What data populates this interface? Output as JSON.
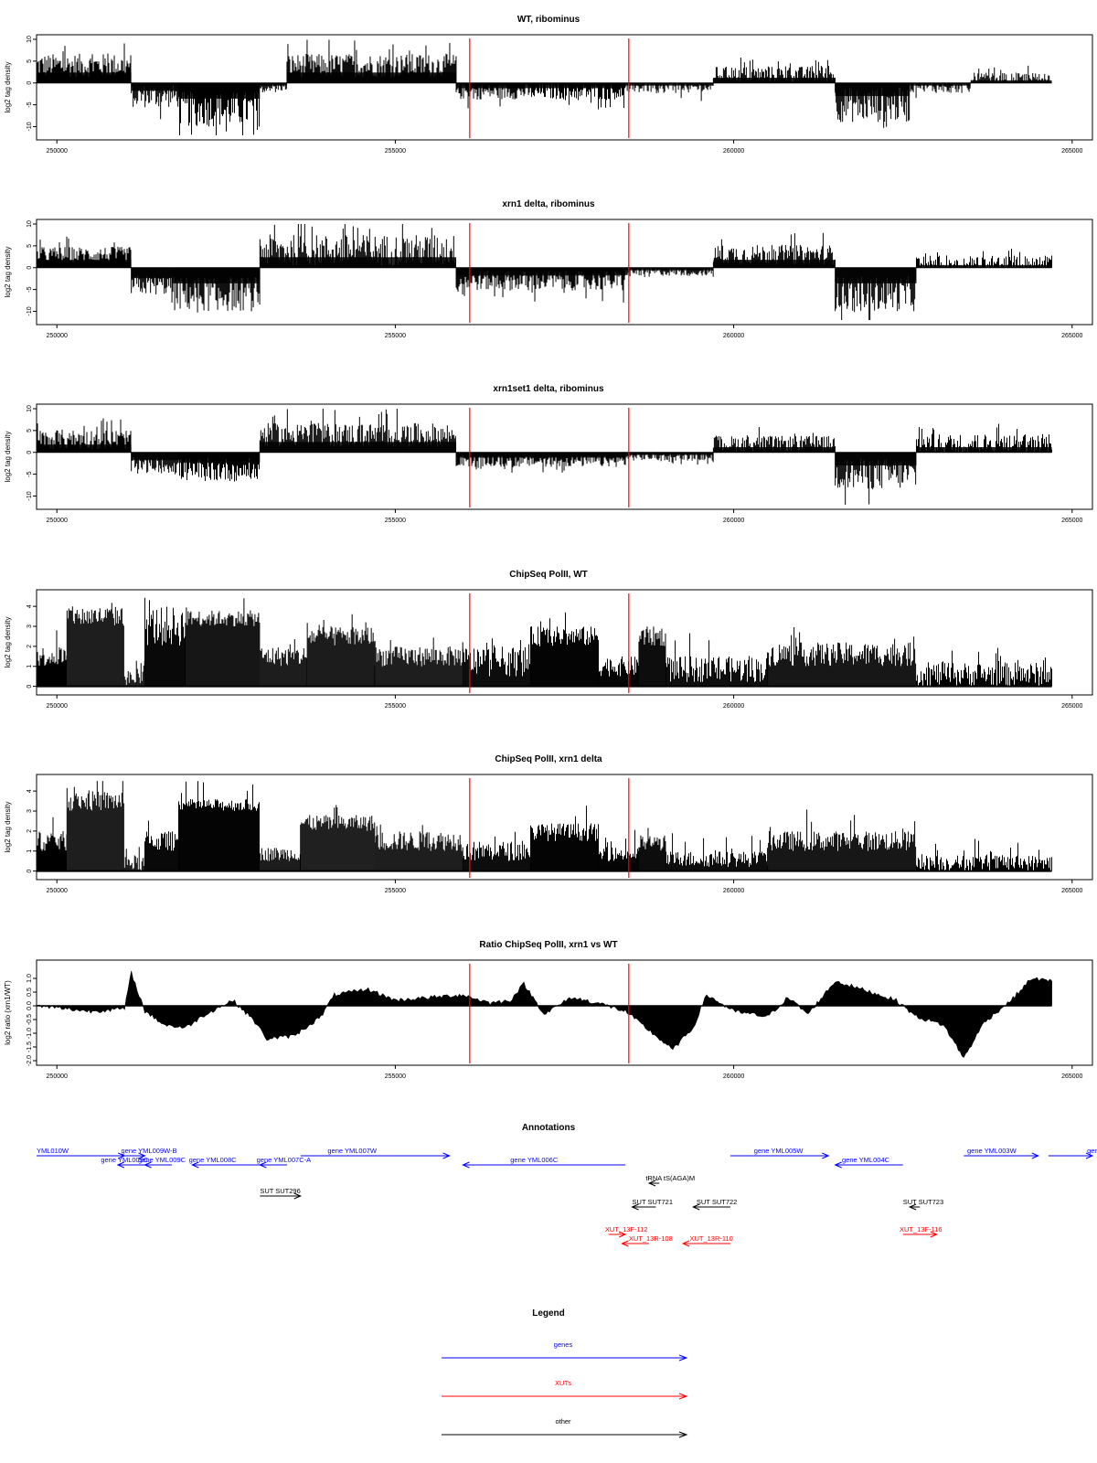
{
  "panels": [
    {
      "title": "WT, ribominus",
      "ylabel": "log2 tag density",
      "kind": "signed",
      "yticks": [
        "10",
        "5",
        "0",
        "-5",
        "-10"
      ],
      "ylim": [
        -12,
        10
      ]
    },
    {
      "title": "xrn1 delta, ribominus",
      "ylabel": "log2 tag density",
      "kind": "signed",
      "yticks": [
        "10",
        "5",
        "0",
        "-5",
        "-10"
      ],
      "ylim": [
        -12,
        10
      ]
    },
    {
      "title": "xrn1set1 delta, ribominus",
      "ylabel": "log2 tag density",
      "kind": "signed",
      "yticks": [
        "10",
        "5",
        "0",
        "-5",
        "-10"
      ],
      "ylim": [
        -12,
        10
      ]
    },
    {
      "title": "ChipSeq PolII, WT",
      "ylabel": "log2 tag density",
      "kind": "pos",
      "yticks": [
        "4",
        "3",
        "2",
        "1",
        "0"
      ],
      "ylim": [
        -0.2,
        4.6
      ]
    },
    {
      "title": "ChipSeq PolII, xrn1 delta",
      "ylabel": "log2 tag density",
      "kind": "pos",
      "yticks": [
        "4",
        "3",
        "2",
        "1",
        "0"
      ],
      "ylim": [
        -0.2,
        4.6
      ]
    },
    {
      "title": "Ratio ChipSeq PolII, xrn1 vs WT",
      "ylabel": "log2 ratio (xrn1/WT)",
      "kind": "ratio",
      "yticks": [
        "1.0",
        "0.5",
        "0.0",
        "-0.5",
        "-1.0",
        "-1.5",
        "-2.0"
      ],
      "ylim": [
        -2.0,
        1.5
      ]
    }
  ],
  "xticks": [
    "250000",
    "255000",
    "260000",
    "265000"
  ],
  "annotations_title": "Annotations",
  "legend_title": "Legend",
  "legend": [
    {
      "label": "genes",
      "color": "#0000ff"
    },
    {
      "label": "XUTs",
      "color": "#ff0000"
    },
    {
      "label": "other",
      "color": "#000000"
    }
  ],
  "chart_data": {
    "type": "bar",
    "xlim": [
      249700,
      265300
    ],
    "xticks": [
      250000,
      255000,
      260000,
      265000
    ],
    "red_markers_x": [
      256100,
      258450
    ],
    "series": [
      {
        "name": "WT, ribominus",
        "segments": [
          [
            249700,
            251100,
            4,
            6
          ],
          [
            251100,
            251800,
            -3,
            6
          ],
          [
            251800,
            253000,
            -6,
            9
          ],
          [
            253000,
            253400,
            -1,
            2
          ],
          [
            253400,
            255900,
            4,
            6
          ],
          [
            255900,
            257000,
            -2,
            4
          ],
          [
            257000,
            258400,
            -2,
            4
          ],
          [
            258400,
            259700,
            -1,
            3
          ],
          [
            259700,
            261500,
            2,
            4
          ],
          [
            261500,
            262600,
            -5,
            9
          ],
          [
            262600,
            263500,
            -1,
            3
          ],
          [
            263500,
            264700,
            1,
            3
          ]
        ]
      },
      {
        "name": "xrn1 delta, ribominus",
        "segments": [
          [
            249700,
            251100,
            3,
            4
          ],
          [
            251100,
            251700,
            -4,
            5
          ],
          [
            251700,
            253000,
            -6,
            9
          ],
          [
            253000,
            255900,
            4,
            8
          ],
          [
            255900,
            258400,
            -3,
            5
          ],
          [
            258400,
            259700,
            -1,
            2
          ],
          [
            259700,
            261500,
            3,
            5
          ],
          [
            261500,
            262700,
            -6,
            9
          ],
          [
            262700,
            264700,
            1,
            4
          ]
        ]
      },
      {
        "name": "xrn1set1 delta, ribominus",
        "segments": [
          [
            249700,
            251100,
            3,
            5
          ],
          [
            251100,
            251800,
            -3,
            4
          ],
          [
            251800,
            253000,
            -4,
            6
          ],
          [
            253000,
            255900,
            4,
            6
          ],
          [
            255900,
            258400,
            -2,
            3
          ],
          [
            258400,
            259700,
            -1,
            2
          ],
          [
            259700,
            261500,
            2,
            4
          ],
          [
            261500,
            262700,
            -5,
            8
          ],
          [
            262700,
            264700,
            2,
            5
          ]
        ]
      },
      {
        "name": "ChipSeq PolII, WT",
        "segments": [
          [
            249700,
            250150,
            1,
            2
          ],
          [
            250150,
            251000,
            3,
            4
          ],
          [
            251000,
            251300,
            0,
            0.8
          ],
          [
            251300,
            251900,
            2,
            4
          ],
          [
            251900,
            253000,
            3,
            3.8
          ],
          [
            253000,
            253700,
            1,
            2
          ],
          [
            253700,
            254700,
            2,
            3
          ],
          [
            254700,
            256000,
            1,
            2
          ],
          [
            256000,
            257000,
            0.5,
            2
          ],
          [
            257000,
            258000,
            2,
            3
          ],
          [
            258000,
            258600,
            0.5,
            1.5
          ],
          [
            258600,
            259000,
            2,
            3
          ],
          [
            259000,
            260500,
            0.2,
            1.5
          ],
          [
            260500,
            262700,
            1,
            2.2
          ],
          [
            262700,
            264700,
            0,
            1.2
          ]
        ]
      },
      {
        "name": "ChipSeq PolII, xrn1 delta",
        "segments": [
          [
            249700,
            250150,
            1,
            2
          ],
          [
            250150,
            251000,
            3,
            4
          ],
          [
            251000,
            251300,
            0,
            0.8
          ],
          [
            251300,
            251800,
            1,
            2
          ],
          [
            251800,
            253000,
            3,
            3.6
          ],
          [
            253000,
            253600,
            0.5,
            1.2
          ],
          [
            253600,
            254700,
            2,
            2.8
          ],
          [
            254700,
            256000,
            1,
            2
          ],
          [
            256000,
            257000,
            0.5,
            1.5
          ],
          [
            257000,
            258000,
            1.5,
            2.4
          ],
          [
            258000,
            258600,
            0.5,
            1.2
          ],
          [
            258600,
            259000,
            1,
            1.8
          ],
          [
            259000,
            260500,
            0.2,
            1
          ],
          [
            260500,
            262700,
            1,
            2
          ],
          [
            262700,
            264700,
            0,
            0.8
          ]
        ]
      },
      {
        "name": "Ratio ChipSeq PolII, xrn1 vs WT",
        "points": [
          [
            249700,
            0
          ],
          [
            250500,
            -0.2
          ],
          [
            251000,
            -0.1
          ],
          [
            251100,
            1.2
          ],
          [
            251300,
            -0.2
          ],
          [
            251600,
            -0.7
          ],
          [
            251900,
            -0.8
          ],
          [
            252200,
            -0.3
          ],
          [
            252600,
            0.2
          ],
          [
            252900,
            -0.5
          ],
          [
            253100,
            -1.2
          ],
          [
            253500,
            -1.1
          ],
          [
            253900,
            -0.4
          ],
          [
            254100,
            0.4
          ],
          [
            254600,
            0.6
          ],
          [
            255000,
            0.2
          ],
          [
            255500,
            0.3
          ],
          [
            256000,
            0.4
          ],
          [
            256400,
            0.1
          ],
          [
            256700,
            0.2
          ],
          [
            256900,
            0.8
          ],
          [
            257200,
            -0.3
          ],
          [
            257600,
            0.3
          ],
          [
            258000,
            0.1
          ],
          [
            258400,
            -0.2
          ],
          [
            258800,
            -1.0
          ],
          [
            259100,
            -1.6
          ],
          [
            259400,
            -0.8
          ],
          [
            259600,
            0.4
          ],
          [
            260000,
            -0.2
          ],
          [
            260500,
            -0.4
          ],
          [
            260800,
            0.3
          ],
          [
            261100,
            -0.3
          ],
          [
            261500,
            0.9
          ],
          [
            261900,
            0.6
          ],
          [
            262400,
            0.2
          ],
          [
            262700,
            -0.4
          ],
          [
            263100,
            -0.7
          ],
          [
            263400,
            -1.9
          ],
          [
            263700,
            -0.6
          ],
          [
            264100,
            0.2
          ],
          [
            264400,
            1.0
          ],
          [
            264700,
            0.9
          ]
        ]
      }
    ]
  },
  "annotations": [
    {
      "label": "YML010W",
      "x1": 249700,
      "x2": 251000,
      "row": 0,
      "dir": 1,
      "color": "#0000ff",
      "lx": 249700
    },
    {
      "label": "gene YML009W-B",
      "x1": 251000,
      "x2": 251300,
      "row": 0,
      "dir": 1,
      "color": "#0000ff",
      "lx": 250950
    },
    {
      "label": "gene YML009C",
      "x1": 250900,
      "x2": 251300,
      "row": 1,
      "dir": -1,
      "color": "#0000ff",
      "lx": 250650
    },
    {
      "label": "gene YML009C",
      "x1": 251300,
      "x2": 251700,
      "row": 1,
      "dir": -1,
      "color": "#0000ff",
      "lx": 251200
    },
    {
      "label": "gene YML008C",
      "x1": 252000,
      "x2": 253000,
      "row": 1,
      "dir": -1,
      "color": "#0000ff",
      "lx": 251950
    },
    {
      "label": "gene YML007C-A",
      "x1": 253000,
      "x2": 253400,
      "row": 1,
      "dir": -1,
      "color": "#0000ff",
      "lx": 252950
    },
    {
      "label": "gene YML007W",
      "x1": 253600,
      "x2": 255800,
      "row": 0,
      "dir": 1,
      "color": "#0000ff",
      "lx": 254000
    },
    {
      "label": "gene YML006C",
      "x1": 256000,
      "x2": 258400,
      "row": 1,
      "dir": -1,
      "color": "#0000ff",
      "lx": 256700
    },
    {
      "label": "gene YML005W",
      "x1": 259950,
      "x2": 261400,
      "row": 0,
      "dir": 1,
      "color": "#0000ff",
      "lx": 260300
    },
    {
      "label": "gene YML004C",
      "x1": 261500,
      "x2": 262500,
      "row": 1,
      "dir": -1,
      "color": "#0000ff",
      "lx": 261600
    },
    {
      "label": "gene YML003W",
      "x1": 263400,
      "x2": 264500,
      "row": 0,
      "dir": 1,
      "color": "#0000ff",
      "lx": 263450
    },
    {
      "label": "gene",
      "x1": 264650,
      "x2": 265300,
      "row": 0,
      "dir": 1,
      "color": "#0000ff",
      "lx": 265220
    },
    {
      "label": "tRNA tS(AGA)M",
      "x1": 258750,
      "x2": 258900,
      "row": 2,
      "dir": -1,
      "color": "#000000",
      "lx": 258700
    },
    {
      "label": "SUT SUT296",
      "x1": 253000,
      "x2": 253600,
      "row": 3,
      "dir": 1,
      "color": "#000000",
      "lx": 253000
    },
    {
      "label": "SUT SUT721",
      "x1": 258500,
      "x2": 258850,
      "row": 4,
      "dir": -1,
      "color": "#000000",
      "lx": 258500
    },
    {
      "label": "SUT SUT722",
      "x1": 259400,
      "x2": 259950,
      "row": 4,
      "dir": -1,
      "color": "#000000",
      "lx": 259450
    },
    {
      "label": "SUT SUT723",
      "x1": 262600,
      "x2": 262750,
      "row": 4,
      "dir": -1,
      "color": "#000000",
      "lx": 262500
    },
    {
      "label": "XUT_13F-112",
      "x1": 258150,
      "x2": 258400,
      "row": 5,
      "dir": 1,
      "color": "#ff0000",
      "lx": 258100
    },
    {
      "label": "XUT_13R-108",
      "x1": 258350,
      "x2": 258750,
      "row": 6,
      "dir": -1,
      "color": "#ff0000",
      "lx": 258450
    },
    {
      "label": "XUT_13R-110",
      "x1": 259250,
      "x2": 259950,
      "row": 6,
      "dir": -1,
      "color": "#ff0000",
      "lx": 259350
    },
    {
      "label": "XUT_13F-116",
      "x1": 262500,
      "x2": 263000,
      "row": 5,
      "dir": 1,
      "color": "#ff0000",
      "lx": 262450
    }
  ]
}
